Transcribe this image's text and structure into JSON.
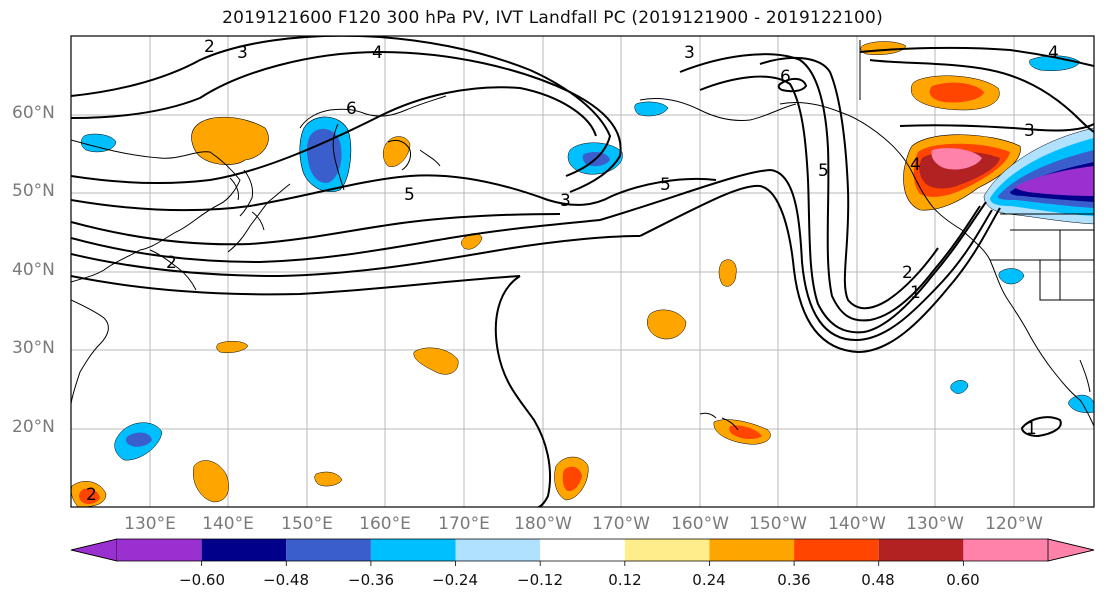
{
  "title": "2019121600 F120 300 hPa PV, IVT Landfall PC (2019121900 - 2019122100)",
  "lat_labels": [
    "60°N",
    "50°N",
    "40°N",
    "30°N",
    "20°N"
  ],
  "lon_labels": [
    "130°E",
    "140°E",
    "150°E",
    "160°E",
    "170°E",
    "180°W",
    "170°W",
    "160°W",
    "150°W",
    "140°W",
    "130°W",
    "120°W"
  ],
  "contour_labels": [
    "2",
    "3",
    "4",
    "5",
    "6",
    "2",
    "3",
    "5",
    "6",
    "5",
    "4",
    "3",
    "4",
    "2",
    "1",
    "1",
    "3",
    "2"
  ],
  "colorbar": {
    "ticks": [
      "−0.60",
      "−0.48",
      "−0.36",
      "−0.24",
      "−0.12",
      "0.12",
      "0.24",
      "0.36",
      "0.48",
      "0.60"
    ],
    "colors": [
      "#9b30d0",
      "#00008b",
      "#3a5fcd",
      "#00bfff",
      "#b0e2ff",
      "#ffffff",
      "#ffec8b",
      "#ffa500",
      "#ff4500",
      "#b22222",
      "#ff82ab",
      "#ff82ab"
    ]
  }
}
